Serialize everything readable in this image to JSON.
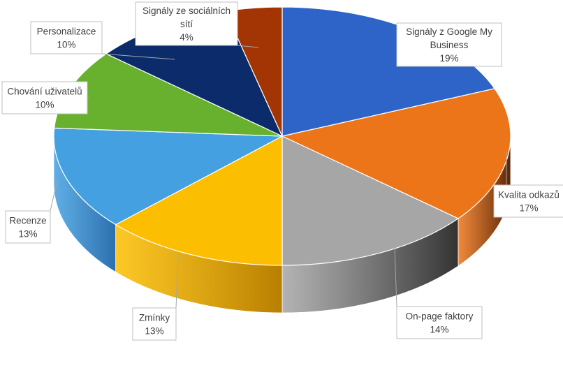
{
  "chart_data": {
    "type": "pie",
    "title": "",
    "slices": [
      {
        "label_lines": [
          "Signály z Google My",
          "Business"
        ],
        "pct": "19%",
        "value": 19,
        "color": "#2e64c8",
        "side_color": "#1c3f82"
      },
      {
        "label_lines": [
          "Kvalita odkazů"
        ],
        "pct": "17%",
        "value": 17,
        "color": "#ed7519",
        "side_color": "#5c2505"
      },
      {
        "label_lines": [
          "On-page faktory"
        ],
        "pct": "14%",
        "value": 14,
        "color": "#a6a6a6",
        "side_color": "#333333"
      },
      {
        "label_lines": [
          "Zmínky"
        ],
        "pct": "13%",
        "value": 13,
        "color": "#fcbe00",
        "side_color": "#b87f00"
      },
      {
        "label_lines": [
          "Recenze"
        ],
        "pct": "13%",
        "value": 13,
        "color": "#44a0e0",
        "side_color": "#2c6fae"
      },
      {
        "label_lines": [
          "Chování uživatelů"
        ],
        "pct": "10%",
        "value": 10,
        "color": "#67b12f",
        "side_color": "#3f751c"
      },
      {
        "label_lines": [
          "Personalizace"
        ],
        "pct": "10%",
        "value": 10,
        "color": "#0b2b6a",
        "side_color": "#071c47"
      },
      {
        "label_lines": [
          "Signály ze sociálních",
          "sítí"
        ],
        "pct": "4%",
        "value": 4,
        "color": "#a33504",
        "side_color": "#5e1e02"
      }
    ]
  }
}
